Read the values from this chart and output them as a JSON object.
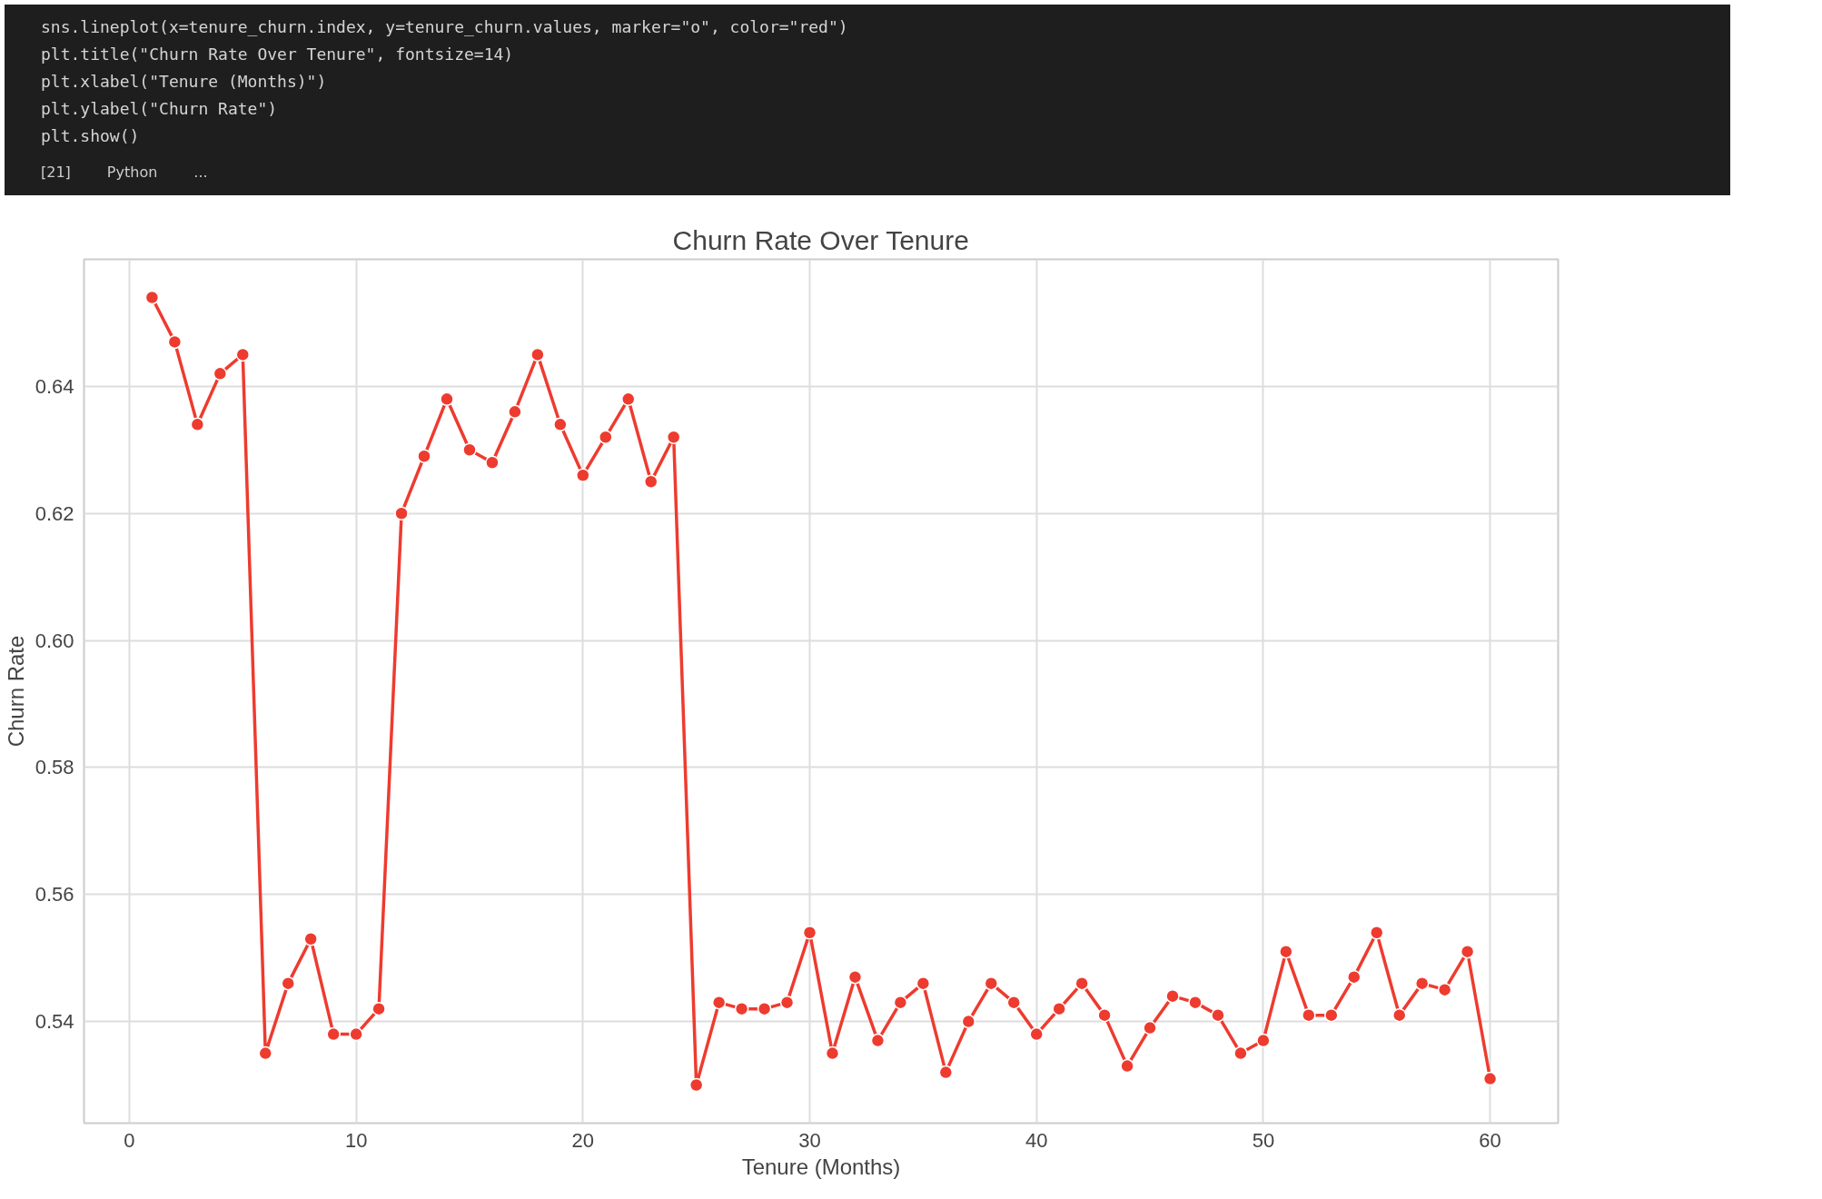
{
  "chart_data": {
    "type": "line",
    "title": "Churn Rate Over Tenure",
    "xlabel": "Tenure (Months)",
    "ylabel": "Churn Rate",
    "annotations": [
      "sns.lineplot(x=tenure_churn.index, y=tenure_churn.values, marker=\"o\", color=\"red\")",
      "plt.title(\"Churn Rate Over Tenure\", fontsize=14)",
      "plt.xlabel(\"Tenure (Months)\")",
      "plt.ylabel(\"Churn Rate\")",
      "plt.show()",
      "[21]",
      "Python",
      "..."
    ],
    "x": [
      1,
      2,
      3,
      4,
      5,
      6,
      7,
      8,
      9,
      10,
      11,
      12,
      13,
      14,
      15,
      16,
      17,
      18,
      19,
      20,
      21,
      22,
      23,
      24,
      25,
      26,
      27,
      28,
      29,
      30,
      31,
      32,
      33,
      34,
      35,
      36,
      37,
      38,
      39,
      40,
      41,
      42,
      43,
      44,
      45,
      46,
      47,
      48,
      49,
      50,
      51,
      52,
      53,
      54,
      55,
      56,
      57,
      58,
      59,
      60
    ],
    "series": [
      {
        "color": "#ee3b2f",
        "values": [
          0.654,
          0.647,
          0.634,
          0.642,
          0.645,
          0.535,
          0.546,
          0.553,
          0.538,
          0.538,
          0.542,
          0.62,
          0.629,
          0.638,
          0.63,
          0.628,
          0.636,
          0.645,
          0.634,
          0.626,
          0.632,
          0.638,
          0.625,
          0.632,
          0.53,
          0.543,
          0.542,
          0.542,
          0.543,
          0.554,
          0.535,
          0.547,
          0.537,
          0.543,
          0.546,
          0.532,
          0.54,
          0.546,
          0.543,
          0.538,
          0.542,
          0.546,
          0.541,
          0.533,
          0.539,
          0.544,
          0.543,
          0.541,
          0.535,
          0.537,
          0.551,
          0.541,
          0.541,
          0.547,
          0.554,
          0.541,
          0.546,
          0.545,
          0.551,
          0.531
        ]
      }
    ],
    "xlim": [
      -2,
      63
    ],
    "ylim": [
      0.524,
      0.66
    ],
    "xticks": [
      0,
      10,
      20,
      30,
      40,
      50,
      60
    ],
    "yticks": [
      {
        "value": 0.54,
        "label": "0.54"
      },
      {
        "value": 0.56,
        "label": "0.56"
      },
      {
        "value": 0.58,
        "label": "0.58"
      },
      {
        "value": 0.6,
        "label": "0.60"
      },
      {
        "value": 0.62,
        "label": "0.62"
      },
      {
        "value": 0.64,
        "label": "0.64"
      }
    ],
    "grid": true,
    "marker": "circle",
    "line_style": "solid"
  }
}
